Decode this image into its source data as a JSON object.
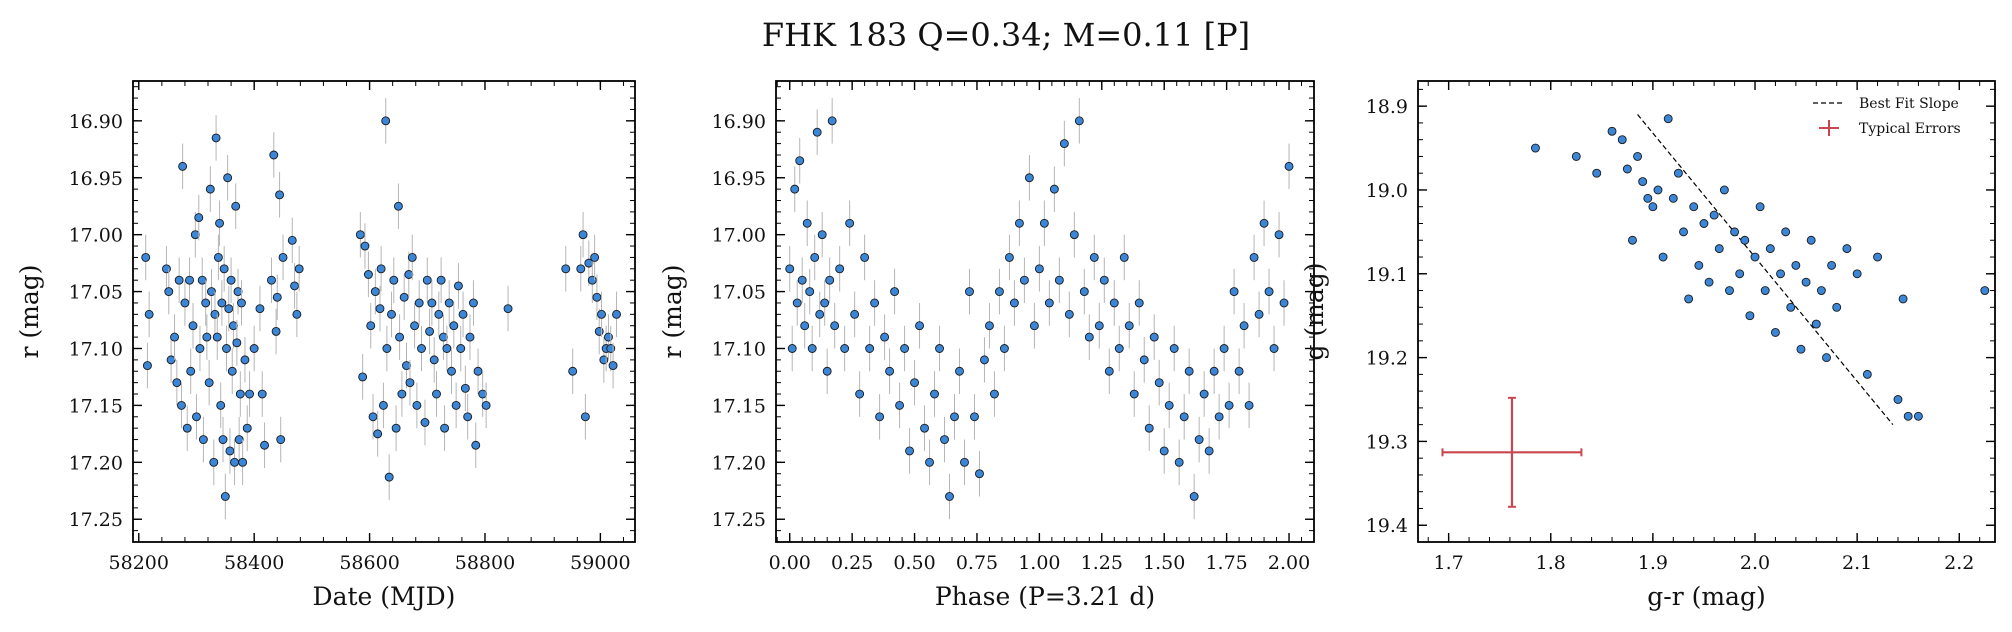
{
  "figure": {
    "title": "FHK 183  Q=0.34; M=0.11 [P]"
  },
  "colors": {
    "point_fill": "#3b86d6",
    "point_edge": "#1a1a1a",
    "error_bar": "#b5b5b5",
    "fit_line": "#000000",
    "typical_error": "#c9464e"
  },
  "chart_data": [
    {
      "type": "scatter",
      "name": "lightcurve-date",
      "xlabel": "Date (MJD)",
      "ylabel": "r (mag)",
      "xlim": [
        58190,
        59060
      ],
      "ylim": [
        17.27,
        16.865
      ],
      "y_inverted": true,
      "xticks": [
        58200,
        58400,
        58600,
        58800,
        59000
      ],
      "xtick_labels": [
        "58200",
        "58400",
        "58600",
        "58800",
        "59000"
      ],
      "yticks": [
        16.9,
        16.95,
        17.0,
        17.05,
        17.1,
        17.15,
        17.2,
        17.25
      ],
      "ytick_labels": [
        "16.90",
        "16.95",
        "17.00",
        "17.05",
        "17.10",
        "17.15",
        "17.20",
        "17.25"
      ],
      "yerr": 0.02,
      "grid": false,
      "points": [
        [
          58212,
          17.02
        ],
        [
          58215,
          17.115
        ],
        [
          58218,
          17.07
        ],
        [
          58248,
          17.03
        ],
        [
          58252,
          17.05
        ],
        [
          58256,
          17.11
        ],
        [
          58262,
          17.09
        ],
        [
          58266,
          17.13
        ],
        [
          58270,
          17.04
        ],
        [
          58274,
          17.15
        ],
        [
          58276,
          16.94
        ],
        [
          58280,
          17.06
        ],
        [
          58284,
          17.17
        ],
        [
          58288,
          17.04
        ],
        [
          58290,
          17.12
        ],
        [
          58294,
          17.08
        ],
        [
          58298,
          17.0
        ],
        [
          58300,
          17.16
        ],
        [
          58304,
          16.985
        ],
        [
          58306,
          17.1
        ],
        [
          58310,
          17.04
        ],
        [
          58312,
          17.18
        ],
        [
          58316,
          17.06
        ],
        [
          58318,
          17.09
        ],
        [
          58322,
          17.13
        ],
        [
          58324,
          16.96
        ],
        [
          58326,
          17.05
        ],
        [
          58330,
          17.2
        ],
        [
          58332,
          17.07
        ],
        [
          58334,
          16.915
        ],
        [
          58336,
          17.09
        ],
        [
          58338,
          17.02
        ],
        [
          58340,
          16.99
        ],
        [
          58342,
          17.15
        ],
        [
          58344,
          17.06
        ],
        [
          58346,
          17.18
        ],
        [
          58348,
          17.03
        ],
        [
          58350,
          17.23
        ],
        [
          58352,
          17.1
        ],
        [
          58354,
          16.95
        ],
        [
          58356,
          17.065
        ],
        [
          58358,
          17.19
        ],
        [
          58360,
          17.04
        ],
        [
          58362,
          17.12
        ],
        [
          58364,
          17.08
        ],
        [
          58366,
          17.2
        ],
        [
          58368,
          16.975
        ],
        [
          58370,
          17.095
        ],
        [
          58372,
          17.05
        ],
        [
          58374,
          17.18
        ],
        [
          58376,
          17.14
        ],
        [
          58378,
          17.06
        ],
        [
          58380,
          17.2
        ],
        [
          58384,
          17.11
        ],
        [
          58388,
          17.17
        ],
        [
          58392,
          17.14
        ],
        [
          58400,
          17.1
        ],
        [
          58410,
          17.065
        ],
        [
          58414,
          17.14
        ],
        [
          58418,
          17.185
        ],
        [
          58430,
          17.04
        ],
        [
          58434,
          16.93
        ],
        [
          58438,
          17.085
        ],
        [
          58440,
          17.055
        ],
        [
          58444,
          16.965
        ],
        [
          58446,
          17.18
        ],
        [
          58450,
          17.02
        ],
        [
          58466,
          17.005
        ],
        [
          58470,
          17.045
        ],
        [
          58474,
          17.07
        ],
        [
          58478,
          17.03
        ],
        [
          58584,
          17.0
        ],
        [
          58588,
          17.125
        ],
        [
          58592,
          17.01
        ],
        [
          58598,
          17.035
        ],
        [
          58602,
          17.08
        ],
        [
          58606,
          17.16
        ],
        [
          58610,
          17.05
        ],
        [
          58614,
          17.175
        ],
        [
          58618,
          17.065
        ],
        [
          58620,
          17.03
        ],
        [
          58624,
          17.15
        ],
        [
          58628,
          16.9
        ],
        [
          58630,
          17.1
        ],
        [
          58634,
          17.213
        ],
        [
          58638,
          17.07
        ],
        [
          58642,
          17.04
        ],
        [
          58646,
          17.17
        ],
        [
          58650,
          16.975
        ],
        [
          58652,
          17.09
        ],
        [
          58656,
          17.14
        ],
        [
          58660,
          17.055
        ],
        [
          58664,
          17.115
        ],
        [
          58668,
          17.035
        ],
        [
          58670,
          17.13
        ],
        [
          58674,
          17.02
        ],
        [
          58678,
          17.08
        ],
        [
          58682,
          17.15
        ],
        [
          58686,
          17.06
        ],
        [
          58690,
          17.1
        ],
        [
          58696,
          17.165
        ],
        [
          58700,
          17.04
        ],
        [
          58704,
          17.085
        ],
        [
          58708,
          17.06
        ],
        [
          58712,
          17.11
        ],
        [
          58716,
          17.14
        ],
        [
          58720,
          17.07
        ],
        [
          58724,
          17.04
        ],
        [
          58728,
          17.09
        ],
        [
          58730,
          17.17
        ],
        [
          58734,
          17.1
        ],
        [
          58738,
          17.06
        ],
        [
          58742,
          17.12
        ],
        [
          58746,
          17.08
        ],
        [
          58750,
          17.15
        ],
        [
          58754,
          17.045
        ],
        [
          58758,
          17.1
        ],
        [
          58762,
          17.07
        ],
        [
          58766,
          17.135
        ],
        [
          58770,
          17.16
        ],
        [
          58774,
          17.09
        ],
        [
          58780,
          17.06
        ],
        [
          58784,
          17.185
        ],
        [
          58788,
          17.12
        ],
        [
          58796,
          17.14
        ],
        [
          58802,
          17.15
        ],
        [
          58840,
          17.065
        ],
        [
          58940,
          17.03
        ],
        [
          58952,
          17.12
        ],
        [
          58966,
          17.03
        ],
        [
          58970,
          17.0
        ],
        [
          58974,
          17.16
        ],
        [
          58980,
          17.025
        ],
        [
          58986,
          17.04
        ],
        [
          58990,
          17.02
        ],
        [
          58994,
          17.055
        ],
        [
          58998,
          17.085
        ],
        [
          59002,
          17.07
        ],
        [
          59006,
          17.11
        ],
        [
          59010,
          17.1
        ],
        [
          59014,
          17.09
        ],
        [
          59018,
          17.1
        ],
        [
          59022,
          17.115
        ],
        [
          59028,
          17.07
        ]
      ]
    },
    {
      "type": "scatter",
      "name": "lightcurve-phase",
      "xlabel": "Phase (P=3.21 d)",
      "ylabel": "r (mag)",
      "xlim": [
        -0.055,
        2.1
      ],
      "ylim": [
        17.27,
        16.865
      ],
      "y_inverted": true,
      "xticks": [
        0,
        0.25,
        0.5,
        0.75,
        1.0,
        1.25,
        1.5,
        1.75,
        2.0
      ],
      "xtick_labels": [
        "0.00",
        "0.25",
        "0.50",
        "0.75",
        "1.00",
        "1.25",
        "1.50",
        "1.75",
        "2.00"
      ],
      "yticks": [
        16.9,
        16.95,
        17.0,
        17.05,
        17.1,
        17.15,
        17.2,
        17.25
      ],
      "ytick_labels": [
        "16.90",
        "16.95",
        "17.00",
        "17.05",
        "17.10",
        "17.15",
        "17.20",
        "17.25"
      ],
      "yerr": 0.02,
      "grid": false,
      "points": [
        [
          0.0,
          17.03
        ],
        [
          0.01,
          17.1
        ],
        [
          0.02,
          16.96
        ],
        [
          0.03,
          17.06
        ],
        [
          0.04,
          16.935
        ],
        [
          0.05,
          17.04
        ],
        [
          0.06,
          17.08
        ],
        [
          0.07,
          16.99
        ],
        [
          0.08,
          17.05
        ],
        [
          0.09,
          17.1
        ],
        [
          0.1,
          17.02
        ],
        [
          0.11,
          16.91
        ],
        [
          0.12,
          17.07
        ],
        [
          0.13,
          17.0
        ],
        [
          0.14,
          17.06
        ],
        [
          0.15,
          17.12
        ],
        [
          0.16,
          17.04
        ],
        [
          0.17,
          16.9
        ],
        [
          0.18,
          17.08
        ],
        [
          0.2,
          17.03
        ],
        [
          0.22,
          17.1
        ],
        [
          0.24,
          16.99
        ],
        [
          0.26,
          17.07
        ],
        [
          0.28,
          17.14
        ],
        [
          0.3,
          17.02
        ],
        [
          0.32,
          17.1
        ],
        [
          0.34,
          17.06
        ],
        [
          0.36,
          17.16
        ],
        [
          0.38,
          17.09
        ],
        [
          0.4,
          17.12
        ],
        [
          0.42,
          17.05
        ],
        [
          0.44,
          17.15
        ],
        [
          0.46,
          17.1
        ],
        [
          0.48,
          17.19
        ],
        [
          0.5,
          17.13
        ],
        [
          0.52,
          17.08
        ],
        [
          0.54,
          17.17
        ],
        [
          0.56,
          17.2
        ],
        [
          0.58,
          17.14
        ],
        [
          0.6,
          17.1
        ],
        [
          0.62,
          17.18
        ],
        [
          0.64,
          17.23
        ],
        [
          0.66,
          17.16
        ],
        [
          0.68,
          17.12
        ],
        [
          0.7,
          17.2
        ],
        [
          0.72,
          17.05
        ],
        [
          0.74,
          17.16
        ],
        [
          0.76,
          17.21
        ],
        [
          0.78,
          17.11
        ],
        [
          0.8,
          17.08
        ],
        [
          0.82,
          17.14
        ],
        [
          0.84,
          17.05
        ],
        [
          0.86,
          17.1
        ],
        [
          0.88,
          17.02
        ],
        [
          0.9,
          17.06
        ],
        [
          0.92,
          16.99
        ],
        [
          0.94,
          17.04
        ],
        [
          0.96,
          16.95
        ],
        [
          0.98,
          17.08
        ],
        [
          1.0,
          17.03
        ],
        [
          1.02,
          16.99
        ],
        [
          1.04,
          17.06
        ],
        [
          1.06,
          16.96
        ],
        [
          1.08,
          17.04
        ],
        [
          1.1,
          16.92
        ],
        [
          1.12,
          17.07
        ],
        [
          1.14,
          17.0
        ],
        [
          1.16,
          16.9
        ],
        [
          1.18,
          17.05
        ],
        [
          1.2,
          17.09
        ],
        [
          1.22,
          17.02
        ],
        [
          1.24,
          17.08
        ],
        [
          1.26,
          17.04
        ],
        [
          1.28,
          17.12
        ],
        [
          1.3,
          17.06
        ],
        [
          1.32,
          17.1
        ],
        [
          1.34,
          17.02
        ],
        [
          1.36,
          17.08
        ],
        [
          1.38,
          17.14
        ],
        [
          1.4,
          17.06
        ],
        [
          1.42,
          17.11
        ],
        [
          1.44,
          17.17
        ],
        [
          1.46,
          17.09
        ],
        [
          1.48,
          17.13
        ],
        [
          1.5,
          17.19
        ],
        [
          1.52,
          17.15
        ],
        [
          1.54,
          17.1
        ],
        [
          1.56,
          17.2
        ],
        [
          1.58,
          17.16
        ],
        [
          1.6,
          17.12
        ],
        [
          1.62,
          17.23
        ],
        [
          1.64,
          17.18
        ],
        [
          1.66,
          17.14
        ],
        [
          1.68,
          17.19
        ],
        [
          1.7,
          17.12
        ],
        [
          1.72,
          17.16
        ],
        [
          1.74,
          17.1
        ],
        [
          1.76,
          17.15
        ],
        [
          1.78,
          17.05
        ],
        [
          1.8,
          17.12
        ],
        [
          1.82,
          17.08
        ],
        [
          1.84,
          17.15
        ],
        [
          1.86,
          17.02
        ],
        [
          1.88,
          17.07
        ],
        [
          1.9,
          16.99
        ],
        [
          1.92,
          17.05
        ],
        [
          1.94,
          17.1
        ],
        [
          1.96,
          17.0
        ],
        [
          1.98,
          17.06
        ],
        [
          2.0,
          16.94
        ]
      ]
    },
    {
      "type": "scatter",
      "name": "color-magnitude",
      "xlabel": "g-r (mag)",
      "ylabel": "g (mag)",
      "xlim": [
        1.67,
        2.235
      ],
      "ylim": [
        19.42,
        18.87
      ],
      "y_inverted": true,
      "xticks": [
        1.7,
        1.8,
        1.9,
        2.0,
        2.1,
        2.2
      ],
      "xtick_labels": [
        "1.7",
        "1.8",
        "1.9",
        "2.0",
        "2.1",
        "2.2"
      ],
      "yticks": [
        18.9,
        19.0,
        19.1,
        19.2,
        19.3,
        19.4
      ],
      "ytick_labels": [
        "18.9",
        "19.0",
        "19.1",
        "19.2",
        "19.3",
        "19.4"
      ],
      "grid": false,
      "legend": {
        "placement": "top-right",
        "entries": [
          "Best Fit Slope",
          "Typical Errors"
        ]
      },
      "fit_line": {
        "x": [
          1.885,
          2.135
        ],
        "y": [
          18.91,
          19.28
        ]
      },
      "typical_error": {
        "x": 1.762,
        "y": 19.313,
        "xerr": 0.068,
        "yerr": 0.065
      },
      "points": [
        [
          1.785,
          18.95
        ],
        [
          1.825,
          18.96
        ],
        [
          1.845,
          18.98
        ],
        [
          1.86,
          18.93
        ],
        [
          1.87,
          18.94
        ],
        [
          1.875,
          18.975
        ],
        [
          1.88,
          19.06
        ],
        [
          1.885,
          18.96
        ],
        [
          1.89,
          18.99
        ],
        [
          1.895,
          19.01
        ],
        [
          1.9,
          19.02
        ],
        [
          1.905,
          19.0
        ],
        [
          1.91,
          19.08
        ],
        [
          1.915,
          18.915
        ],
        [
          1.92,
          19.01
        ],
        [
          1.925,
          18.98
        ],
        [
          1.93,
          19.05
        ],
        [
          1.935,
          19.13
        ],
        [
          1.94,
          19.02
        ],
        [
          1.945,
          19.09
        ],
        [
          1.95,
          19.04
        ],
        [
          1.955,
          19.11
        ],
        [
          1.96,
          19.03
        ],
        [
          1.965,
          19.07
        ],
        [
          1.97,
          19.0
        ],
        [
          1.975,
          19.12
        ],
        [
          1.98,
          19.05
        ],
        [
          1.985,
          19.1
        ],
        [
          1.99,
          19.06
        ],
        [
          1.995,
          19.15
        ],
        [
          2.0,
          19.08
        ],
        [
          2.005,
          19.02
        ],
        [
          2.01,
          19.12
        ],
        [
          2.015,
          19.07
        ],
        [
          2.02,
          19.17
        ],
        [
          2.025,
          19.1
        ],
        [
          2.03,
          19.05
        ],
        [
          2.035,
          19.14
        ],
        [
          2.04,
          19.09
        ],
        [
          2.045,
          19.19
        ],
        [
          2.05,
          19.11
        ],
        [
          2.055,
          19.06
        ],
        [
          2.06,
          19.16
        ],
        [
          2.065,
          19.12
        ],
        [
          2.07,
          19.2
        ],
        [
          2.075,
          19.09
        ],
        [
          2.08,
          19.14
        ],
        [
          2.09,
          19.07
        ],
        [
          2.1,
          19.1
        ],
        [
          2.11,
          19.22
        ],
        [
          2.12,
          19.08
        ],
        [
          2.14,
          19.25
        ],
        [
          2.145,
          19.13
        ],
        [
          2.15,
          19.27
        ],
        [
          2.16,
          19.27
        ],
        [
          2.225,
          19.12
        ]
      ]
    }
  ]
}
